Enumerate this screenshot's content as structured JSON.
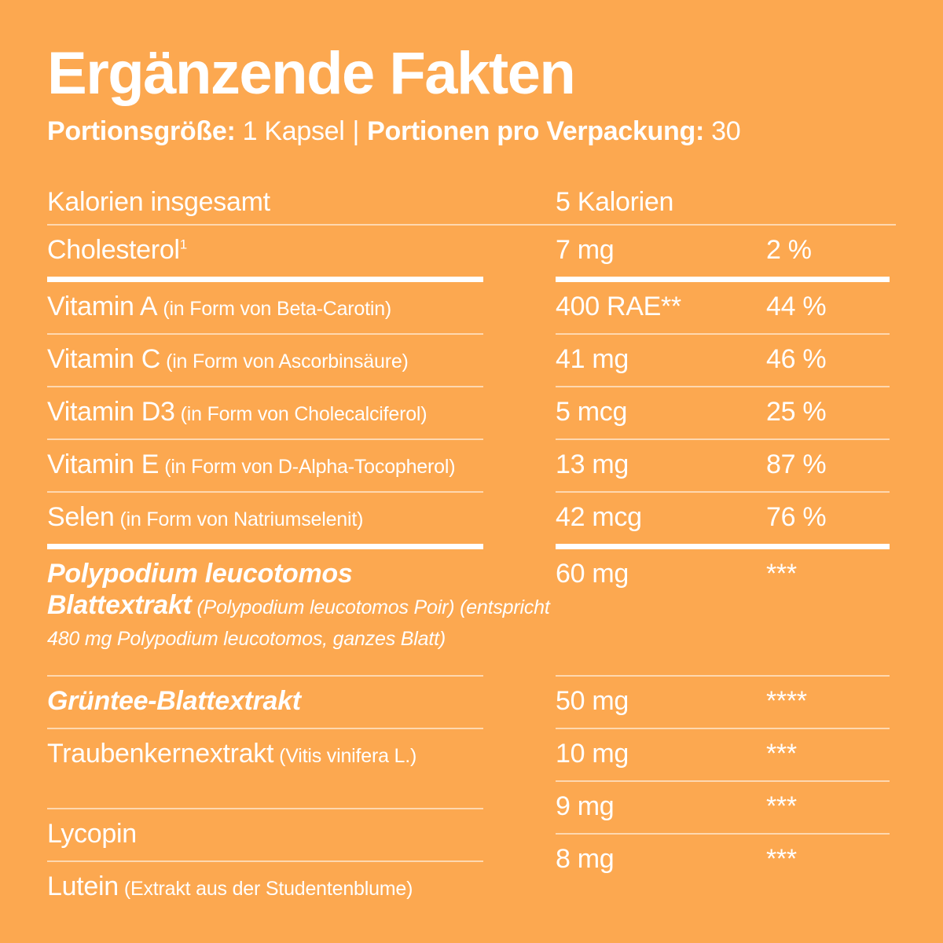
{
  "header": {
    "title": "Ergänzende Fakten",
    "serving_size_label": "Portionsgröße:",
    "serving_size_value": "1 Kapsel",
    "separator": "|",
    "servings_label": "Portionen pro Verpackung:",
    "servings_value": "30"
  },
  "colors": {
    "background": "#FCA850",
    "text": "#FFFFFF",
    "divider_thin": "rgba(255,255,255,0.55)",
    "divider_thick": "#FFFFFF"
  },
  "table": {
    "first_row": {
      "name": "Kalorien insgesamt",
      "amount": "5 Kalorien"
    },
    "rows": [
      {
        "name": "Cholesterol",
        "sup": "1",
        "detail": "",
        "amount": "7 mg",
        "dv": "2 %"
      },
      {
        "name": "Vitamin A",
        "detail": "(in Form von Beta-Carotin)",
        "amount": "400 RAE**",
        "dv": "44 %"
      },
      {
        "name": "Vitamin C",
        "detail": "(in Form von Ascorbinsäure)",
        "amount": "41 mg",
        "dv": "46 %"
      },
      {
        "name": "Vitamin D3",
        "detail": "(in Form von Cholecalciferol)",
        "amount": "5 mcg",
        "dv": "25 %"
      },
      {
        "name": "Vitamin E",
        "detail": "(in Form von D-Alpha-Tocopherol)",
        "amount": "13 mg",
        "dv": "87 %"
      },
      {
        "name": "Selen",
        "detail": "(in Form von Natriumselenit)",
        "amount": "42 mcg",
        "dv": "76 %"
      },
      {
        "name": "Polypodium leucotomos Blattextrakt",
        "detail": "(Polypodium leucotomos Poir) (entspricht 480 mg Polypodium leucotomos, ganzes Blatt)",
        "amount": "60 mg",
        "dv": "***"
      },
      {
        "name": "Grüntee-Blattextrakt",
        "detail": "",
        "amount": "50 mg",
        "dv": "****"
      },
      {
        "name": "Traubenkernextrakt",
        "detail": "(Vitis vinifera L.)",
        "amount": "10 mg",
        "dv": "***"
      },
      {
        "name": "Lycopin",
        "detail": "",
        "amount": "9 mg",
        "dv": "***"
      },
      {
        "name": "Lutein",
        "detail": "(Extrakt aus der Studentenblume)",
        "amount": "8 mg",
        "dv": "***"
      }
    ]
  }
}
